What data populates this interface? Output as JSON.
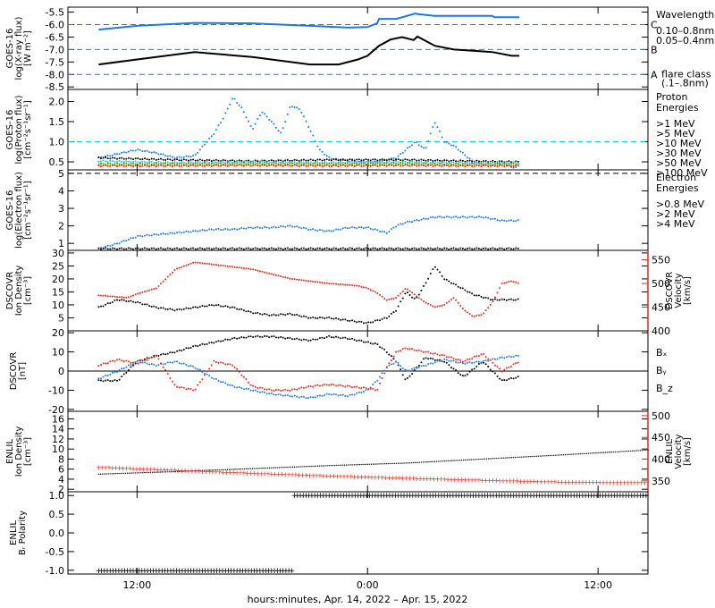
{
  "colors": {
    "black": "#000000",
    "blue": "#1e78e6",
    "cyan": "#18c8d8",
    "green": "#20b020",
    "orange": "#e0a000",
    "red": "#e22a1e",
    "magenta": "#e020e0"
  },
  "chart_data": [
    {
      "type": "line",
      "ylabel": [
        "GOES-16",
        "log(X-ray flux)",
        "[W m⁻²]"
      ],
      "ylim": [
        -8.6,
        -5.3
      ],
      "yticks": [
        -5.5,
        -6.0,
        -6.5,
        -7.0,
        -7.5,
        -8.0,
        -8.5
      ],
      "flare_levels": [
        {
          "value": -6.0,
          "label": "C"
        },
        {
          "value": -7.0,
          "label": "B"
        },
        {
          "value": -8.0,
          "label": "A"
        }
      ],
      "legend_title": "Wavelength",
      "legend": [
        {
          "name": "0.10–0.8nm",
          "color": "blue"
        },
        {
          "name": "0.05–0.4nm",
          "color": "black"
        }
      ],
      "annotation": [
        "flare class",
        "(.1–.8nm)"
      ],
      "series": [
        {
          "name": "0.10–0.8nm",
          "color": "blue",
          "x": [
            -14,
            -12,
            -9,
            -6,
            -3,
            -1,
            0,
            0.5,
            0.6,
            1.5,
            2.5,
            2.6,
            3.5,
            3.6,
            6.5,
            6.6,
            7.9
          ],
          "y": [
            -6.2,
            -6.05,
            -5.93,
            -5.95,
            -6.05,
            -6.12,
            -6.1,
            -5.95,
            -5.77,
            -5.77,
            -5.55,
            -5.58,
            -5.65,
            -5.65,
            -5.65,
            -5.7,
            -5.7
          ]
        },
        {
          "name": "0.05–0.4nm",
          "color": "black",
          "x": [
            -14,
            -12,
            -9,
            -6,
            -3,
            -1.5,
            -0.5,
            0,
            0.6,
            1.2,
            1.8,
            2.4,
            2.6,
            3.5,
            4.5,
            5.5,
            6.5,
            7.5,
            7.9
          ],
          "y": [
            -7.6,
            -7.4,
            -7.1,
            -7.3,
            -7.6,
            -7.6,
            -7.4,
            -7.25,
            -6.85,
            -6.6,
            -6.5,
            -6.62,
            -6.48,
            -6.85,
            -7.0,
            -7.05,
            -7.1,
            -7.25,
            -7.25
          ]
        }
      ]
    },
    {
      "type": "scatter",
      "ylabel": [
        "GOES-16",
        "log(Proton flux)",
        "[cm⁻²s⁻¹sr⁻¹]"
      ],
      "ylim": [
        0.3,
        2.3
      ],
      "yticks": [
        0.5,
        1.0,
        1.5,
        2.0
      ],
      "threshold": 1.0,
      "legend_title": [
        "Proton",
        "Energies"
      ],
      "legend": [
        {
          "name": ">1 MeV",
          "color": "blue"
        },
        {
          "name": ">5 MeV",
          "color": "black"
        },
        {
          "name": ">10 MeV",
          "color": "cyan"
        },
        {
          "name": ">30 MeV",
          "color": "green"
        },
        {
          "name": ">50 MeV",
          "color": "orange"
        },
        {
          "name": ">100 MeV",
          "color": "red"
        }
      ],
      "series": [
        {
          "name": ">1 MeV",
          "color": "blue",
          "x": [
            -14,
            -12,
            -11,
            -10,
            -9,
            -8,
            -7.5,
            -7,
            -6.5,
            -6,
            -5.5,
            -5,
            -4.5,
            -4,
            -3.5,
            -3,
            -2.5,
            -2,
            -1.5,
            -1,
            -0.5,
            0,
            0.5,
            1,
            1.5,
            2,
            2.5,
            3,
            3.5,
            4,
            4.5,
            5,
            5.5,
            6,
            6.5,
            7,
            7.5,
            7.9
          ],
          "y": [
            0.6,
            0.8,
            0.72,
            0.6,
            0.65,
            1.2,
            1.6,
            2.1,
            1.8,
            1.3,
            1.75,
            1.5,
            1.2,
            1.9,
            1.8,
            1.3,
            0.8,
            0.6,
            0.55,
            0.52,
            0.5,
            0.5,
            0.5,
            0.55,
            0.6,
            0.8,
            1.0,
            0.8,
            1.5,
            1.0,
            0.9,
            0.7,
            0.5,
            0.45,
            0.4,
            0.5,
            0.35,
            0.4
          ]
        },
        {
          "name": ">5 MeV",
          "color": "black",
          "x": [
            -14,
            -10,
            -6,
            -2,
            2,
            5,
            7.9
          ],
          "y": [
            0.6,
            0.55,
            0.52,
            0.55,
            0.55,
            0.52,
            0.5
          ]
        },
        {
          "name": ">10 MeV",
          "color": "cyan",
          "x": [
            -14,
            -10,
            -6,
            -2,
            2,
            5,
            7.9
          ],
          "y": [
            0.52,
            0.48,
            0.5,
            0.48,
            0.5,
            0.48,
            0.48
          ]
        },
        {
          "name": ">30 MeV",
          "color": "green",
          "x": [
            -14,
            -10,
            -6,
            -2,
            2,
            5,
            7.9
          ],
          "y": [
            0.45,
            0.45,
            0.46,
            0.45,
            0.46,
            0.44,
            0.45
          ]
        },
        {
          "name": ">50 MeV",
          "color": "orange",
          "x": [
            -14,
            -10,
            -6,
            -2,
            2,
            5,
            7.9
          ],
          "y": [
            0.42,
            0.42,
            0.43,
            0.42,
            0.43,
            0.42,
            0.42
          ]
        },
        {
          "name": ">100 MeV",
          "color": "red",
          "x": [
            -14,
            -10,
            -6,
            -2,
            2,
            5,
            7.9
          ],
          "y": [
            0.4,
            0.4,
            0.41,
            0.4,
            0.41,
            0.4,
            0.4
          ]
        }
      ]
    },
    {
      "type": "scatter",
      "ylabel": [
        "GOES-16",
        "log(Electron flux)",
        "[cm⁻²s⁻¹sr⁻¹]"
      ],
      "ylim": [
        0.6,
        5.2
      ],
      "yticks": [
        1,
        2,
        3,
        4,
        5
      ],
      "threshold": 5.0,
      "legend_title": [
        "Electron",
        "Energies"
      ],
      "legend": [
        {
          "name": ">0.8 MeV",
          "color": "black"
        },
        {
          "name": ">2 MeV",
          "color": "blue"
        },
        {
          "name": ">4 MeV",
          "color": "magenta"
        }
      ],
      "series": [
        {
          "name": ">2 MeV",
          "color": "blue",
          "x": [
            -14,
            -13,
            -12,
            -11,
            -10,
            -9,
            -8,
            -7,
            -6,
            -5,
            -4,
            -3,
            -2,
            -1,
            0,
            1,
            1.5,
            2,
            2.5,
            3,
            3.5,
            4,
            4.5,
            5,
            5.5,
            6,
            6.5,
            7,
            7.5,
            7.9
          ],
          "y": [
            0.7,
            1.0,
            1.4,
            1.5,
            1.6,
            1.7,
            1.8,
            1.8,
            1.9,
            1.9,
            2.0,
            1.8,
            1.7,
            1.9,
            1.9,
            1.6,
            2.0,
            2.2,
            2.3,
            2.4,
            2.5,
            2.5,
            2.5,
            2.5,
            2.5,
            2.5,
            2.4,
            2.3,
            2.3,
            2.3
          ]
        },
        {
          "name": ">0.8 MeV",
          "color": "black",
          "x": [
            -14,
            -8,
            -2,
            2,
            6,
            7.9
          ],
          "y": [
            0.7,
            0.7,
            0.7,
            0.7,
            0.7,
            0.7
          ]
        }
      ]
    },
    {
      "type": "scatter",
      "ylabel": [
        "DSCOVR",
        "Ion Density",
        "[cm⁻³]"
      ],
      "ylim": [
        0,
        31
      ],
      "yticks": [
        5,
        10,
        15,
        20,
        25,
        30
      ],
      "y2label": [
        "DSCOVR",
        "Velocity",
        "[km/s]"
      ],
      "y2lim": [
        400,
        570
      ],
      "y2ticks": [
        400,
        450,
        500,
        550
      ],
      "series": [
        {
          "name": "Density",
          "color": "black",
          "axis": "left",
          "x": [
            -14,
            -13,
            -12,
            -11,
            -10,
            -9,
            -8,
            -7,
            -6,
            -5,
            -4,
            -3,
            -2,
            -1,
            0,
            0.5,
            1,
            1.5,
            2,
            2.5,
            3,
            3.5,
            4,
            4.5,
            5,
            5.5,
            6,
            6.5,
            7,
            7.5,
            7.9
          ],
          "y": [
            9,
            12,
            11,
            9,
            8,
            9,
            10,
            9,
            7,
            6,
            6.5,
            5,
            5,
            4,
            3,
            4,
            5,
            8,
            15,
            12,
            18,
            25,
            20,
            18,
            16,
            14,
            13,
            12,
            12,
            12,
            12
          ]
        },
        {
          "name": "Velocity",
          "color": "red",
          "axis": "right",
          "x": [
            -14,
            -12.5,
            -12,
            -11,
            -10,
            -9,
            -8,
            -7,
            -6,
            -5,
            -4,
            -3,
            -2,
            -1,
            -0.5,
            0,
            0.5,
            1,
            1.5,
            2,
            2.5,
            3,
            3.5,
            4,
            4.5,
            5,
            5.5,
            6,
            6.5,
            7,
            7.5,
            7.9
          ],
          "y": [
            475,
            470,
            478,
            490,
            530,
            545,
            540,
            535,
            530,
            520,
            510,
            505,
            500,
            497,
            495,
            490,
            480,
            465,
            470,
            490,
            475,
            460,
            450,
            455,
            470,
            445,
            430,
            435,
            460,
            500,
            505,
            500
          ]
        }
      ]
    },
    {
      "type": "scatter",
      "ylabel": [
        "DSCOVR",
        "[nT]"
      ],
      "ylim": [
        -21,
        21
      ],
      "yticks": [
        -20,
        -10,
        0,
        10,
        20
      ],
      "legend": [
        {
          "name": "Bₓ",
          "color": "black"
        },
        {
          "name": "Bᵧ",
          "color": "blue"
        },
        {
          "name": "B_z",
          "color": "red"
        }
      ],
      "series": [
        {
          "name": "Bx",
          "color": "black",
          "x": [
            -14,
            -13,
            -12,
            -11,
            -10,
            -9,
            -8,
            -7,
            -6,
            -5,
            -4,
            -3,
            -2,
            -1,
            0,
            0.5,
            1,
            1.5,
            2,
            3,
            4,
            5,
            6,
            7,
            7.9
          ],
          "y": [
            -5,
            -5,
            5,
            8,
            10,
            13,
            15,
            17,
            18,
            18,
            17,
            16,
            18,
            17,
            15,
            14,
            10,
            5,
            -5,
            7,
            5,
            -3,
            5,
            -5,
            -3
          ]
        },
        {
          "name": "By",
          "color": "blue",
          "x": [
            -14,
            -13,
            -12,
            -11,
            -10,
            -9,
            -8,
            -7,
            -6,
            -5,
            -4,
            -3,
            -2,
            -1,
            0,
            0.5,
            1,
            1.5,
            2,
            3,
            4,
            5,
            6,
            7,
            7.9
          ],
          "y": [
            -4,
            0,
            5,
            3,
            5,
            2,
            -4,
            -8,
            -10,
            -12,
            -13,
            -14,
            -12,
            -13,
            -10,
            -5,
            2,
            5,
            0,
            3,
            6,
            4,
            5,
            7,
            8
          ]
        },
        {
          "name": "Bz",
          "color": "red",
          "x": [
            -14,
            -13,
            -12,
            -11,
            -10,
            -9,
            -8,
            -7,
            -6,
            -5,
            -4,
            -3,
            -2,
            -1,
            0,
            0.5,
            1,
            1.5,
            2,
            3,
            4,
            5,
            6,
            7,
            7.9
          ],
          "y": [
            3,
            6,
            4,
            8,
            -8,
            -10,
            5,
            3,
            -8,
            -10,
            -10,
            -8,
            -7,
            -8,
            -9,
            -10,
            2,
            10,
            12,
            10,
            8,
            5,
            9,
            0,
            5
          ]
        }
      ]
    },
    {
      "type": "line",
      "ylabel": [
        "ENLIL",
        "Ion Density",
        "[cm⁻³]"
      ],
      "ylim": [
        1.5,
        17.5
      ],
      "yticks": [
        2,
        4,
        6,
        8,
        10,
        12,
        14,
        16
      ],
      "y2label": [
        "ENLIL",
        "Velocity",
        "[km/s]"
      ],
      "y2lim": [
        325,
        510
      ],
      "y2ticks": [
        350,
        400,
        450,
        500
      ],
      "series": [
        {
          "name": "Density",
          "color": "black",
          "axis": "left",
          "x": [
            -14,
            -10,
            -6,
            -2,
            2,
            6,
            10,
            14.6
          ],
          "y": [
            5,
            5.5,
            6.1,
            6.7,
            7.2,
            8.0,
            8.8,
            9.8
          ]
        },
        {
          "name": "Velocity",
          "color": "red",
          "axis": "right",
          "x": [
            -14,
            -10,
            -6,
            -2,
            2,
            6,
            10,
            14.6
          ],
          "y": [
            382,
            375,
            368,
            362,
            357,
            352,
            348,
            346
          ]
        }
      ]
    },
    {
      "type": "scatter",
      "ylabel": [
        "ENLIL",
        "Bᵣ Polarity"
      ],
      "ylim": [
        -1.1,
        1.1
      ],
      "yticks": [
        -1.0,
        -0.5,
        0.0,
        0.5,
        1.0
      ],
      "series": [
        {
          "name": "Polarity",
          "color": "black",
          "segments": [
            {
              "x": [
                -14,
                -3.8
              ],
              "y": -1
            },
            {
              "x": [
                -3.8,
                14.6
              ],
              "y": 1
            }
          ]
        }
      ]
    }
  ],
  "x_axis": {
    "range_hours": [
      -15.6,
      14.6
    ],
    "ticks": [
      {
        "value": -12,
        "label": "12:00"
      },
      {
        "value": 0,
        "label": "0:00"
      },
      {
        "value": 12,
        "label": "12:00"
      }
    ],
    "xlabel": "hours:minutes, Apr. 14, 2022 – Apr. 15, 2022"
  }
}
